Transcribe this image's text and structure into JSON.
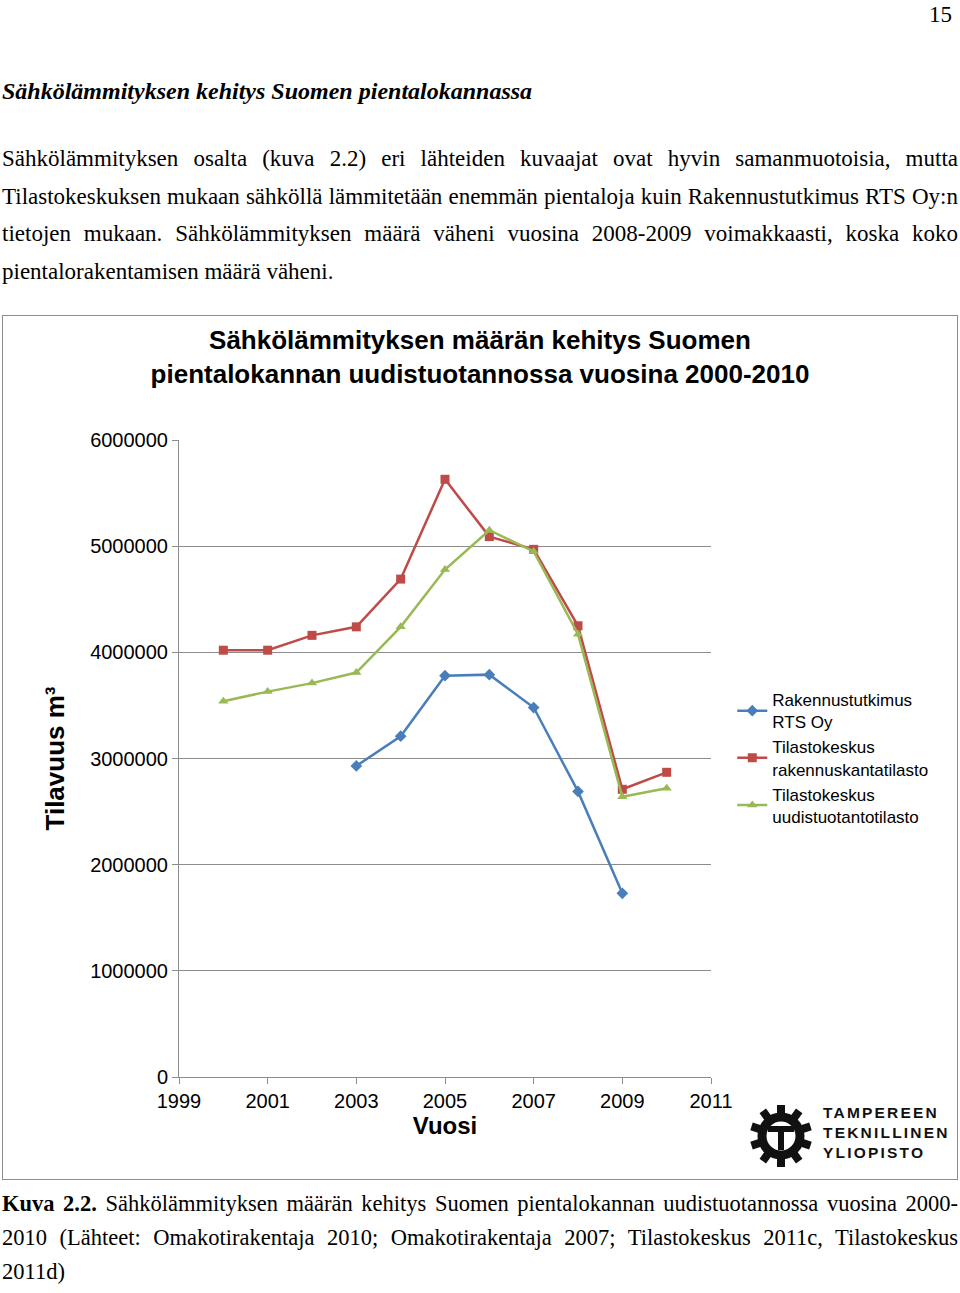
{
  "page_number": "15",
  "heading": "Sähkölämmityksen kehitys Suomen pientalokannassa",
  "paragraph": "Sähkölämmityksen osalta (kuva 2.2) eri lähteiden kuvaajat ovat hyvin samanmuotoisia, mutta Tilastokeskuksen mukaan sähköllä lämmitetään enemmän pientaloja kuin Rakennustutkimus RTS Oy:n tietojen mukaan. Sähkölämmityksen määrä väheni vuosina 2008-2009 voimakkaasti, koska koko pientalorakentamisen määrä väheni.",
  "chart_data": {
    "type": "line",
    "title": [
      "Sähkölämmityksen määrän kehitys Suomen",
      "pientalokannan uudistuotannossa vuosina 2000-2010"
    ],
    "xlabel": "Vuosi",
    "ylabel": "Tilavuus m³",
    "xlim": [
      1999,
      2011
    ],
    "xticks": [
      1999,
      2001,
      2003,
      2005,
      2007,
      2009,
      2011
    ],
    "ylim": [
      0,
      6000000
    ],
    "yticks": [
      0,
      1000000,
      2000000,
      3000000,
      4000000,
      5000000,
      6000000
    ],
    "grid": true,
    "legend": "right",
    "series": [
      {
        "name": "Rakennustutkimus RTS Oy",
        "color": "#4a7ebb",
        "marker": "diamond",
        "x": [
          2003,
          2004,
          2005,
          2006,
          2007,
          2008,
          2009
        ],
        "values": [
          2930000,
          3210000,
          3780000,
          3790000,
          3480000,
          2690000,
          1730000
        ]
      },
      {
        "name": "Tilastokeskus rakennuskantatilasto",
        "color": "#be4b48",
        "marker": "square",
        "x": [
          2000,
          2001,
          2002,
          2003,
          2004,
          2005,
          2006,
          2007,
          2008,
          2009,
          2010
        ],
        "values": [
          4020000,
          4020000,
          4160000,
          4240000,
          4690000,
          5630000,
          5090000,
          4970000,
          4250000,
          2710000,
          2870000
        ]
      },
      {
        "name": "Tilastokeskus uudistuotantotilasto",
        "color": "#98b954",
        "marker": "triangle-up",
        "x": [
          2000,
          2001,
          2002,
          2003,
          2004,
          2005,
          2006,
          2007,
          2008,
          2009,
          2010
        ],
        "values": [
          3540000,
          3630000,
          3710000,
          3810000,
          4240000,
          4780000,
          5150000,
          4950000,
          4170000,
          2640000,
          2720000
        ]
      }
    ]
  },
  "logo": [
    "TAMPEREEN",
    "TEKNILLINEN",
    "YLIOPISTO"
  ],
  "caption": {
    "label": "Kuva 2.2.",
    "text": "Sähkölämmityksen määrän kehitys Suomen pientalokannan uudistuotannossa vuosina 2000-2010 (Lähteet: Omakotirakentaja 2010; Omakotirakentaja 2007; Tilastokeskus 2011c, Tilastokeskus 2011d)"
  }
}
